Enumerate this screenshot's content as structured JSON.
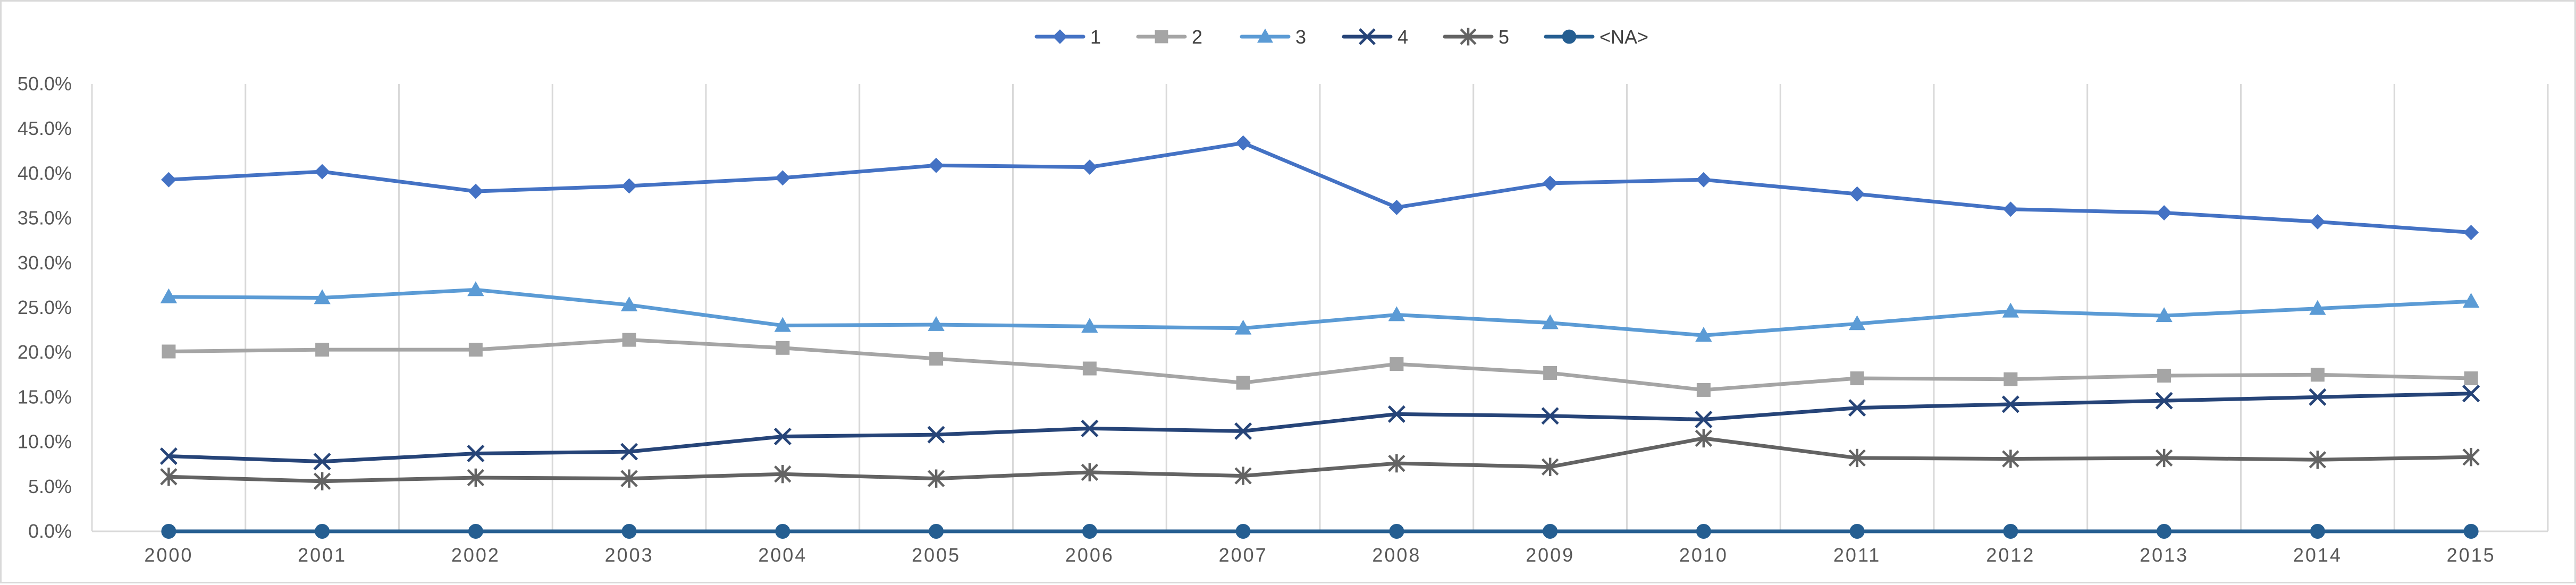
{
  "chart_data": {
    "type": "line",
    "title": "",
    "xlabel": "",
    "ylabel": "",
    "x": [
      "2000",
      "2001",
      "2002",
      "2003",
      "2004",
      "2005",
      "2006",
      "2007",
      "2008",
      "2009",
      "2010",
      "2011",
      "2012",
      "2013",
      "2014",
      "2015"
    ],
    "ylim": [
      0,
      50
    ],
    "y_ticks": [
      "0.0%",
      "5.0%",
      "10.0%",
      "15.0%",
      "20.0%",
      "25.0%",
      "30.0%",
      "35.0%",
      "40.0%",
      "45.0%",
      "50.0%"
    ],
    "grid": "vertical",
    "legend": "top-center",
    "series": [
      {
        "name": "1",
        "color": "#4472c4",
        "marker": "diamond",
        "values": [
          39.3,
          40.2,
          38.0,
          38.6,
          39.5,
          40.9,
          40.7,
          43.4,
          36.2,
          38.9,
          39.3,
          37.7,
          36.0,
          35.6,
          34.6,
          33.4
        ]
      },
      {
        "name": "2",
        "color": "#a5a5a5",
        "marker": "square",
        "values": [
          20.1,
          20.3,
          20.3,
          21.4,
          20.5,
          19.3,
          18.2,
          16.6,
          18.7,
          17.7,
          15.8,
          17.1,
          17.0,
          17.4,
          17.5,
          17.1
        ]
      },
      {
        "name": "3",
        "color": "#5b9bd5",
        "marker": "triangle",
        "values": [
          26.2,
          26.1,
          27.0,
          25.3,
          23.0,
          23.1,
          22.9,
          22.7,
          24.2,
          23.3,
          21.9,
          23.2,
          24.6,
          24.1,
          24.9,
          25.7
        ]
      },
      {
        "name": "4",
        "color": "#264478",
        "marker": "x",
        "values": [
          8.4,
          7.8,
          8.7,
          8.9,
          10.6,
          10.8,
          11.5,
          11.2,
          13.1,
          12.9,
          12.5,
          13.8,
          14.2,
          14.6,
          15.0,
          15.4
        ]
      },
      {
        "name": "5",
        "color": "#636363",
        "marker": "star",
        "values": [
          6.1,
          5.6,
          6.0,
          5.9,
          6.4,
          5.9,
          6.6,
          6.2,
          7.6,
          7.2,
          10.4,
          8.2,
          8.1,
          8.2,
          8.0,
          8.3
        ]
      },
      {
        "name": "<NA>",
        "color": "#255e91",
        "marker": "circle",
        "values": [
          0,
          0,
          0,
          0,
          0,
          0,
          0,
          0,
          0,
          0,
          0,
          0,
          0,
          0,
          0,
          0
        ]
      }
    ]
  }
}
